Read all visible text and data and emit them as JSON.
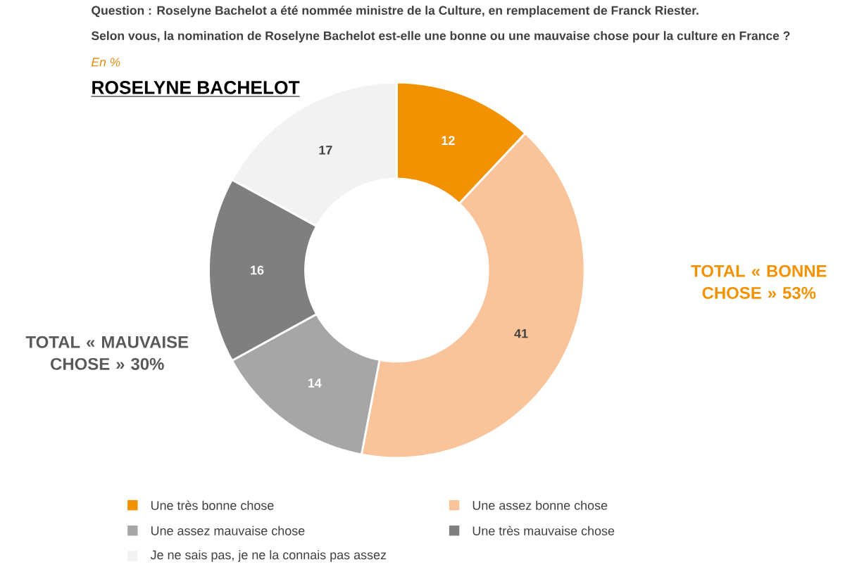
{
  "chart_data": {
    "type": "donut",
    "title": "ROSELYNE BACHELOT",
    "subtitle": "Question : Roselyne Bachelot a été nommée ministre de la Culture, en remplacement de Franck Riester.",
    "annotations": [
      "Selon vous, la nomination de Roselyne Bachelot est-elle une bonne ou une mauvaise chose pour la culture en France ?",
      "En %",
      "TOTAL « BONNE CHOSE » 53%",
      "TOTAL « MAUVAISE CHOSE » 30%"
    ],
    "categories": [
      "Une très bonne chose",
      "Une assez bonne chose",
      "Une assez mauvaise chose",
      "Une très mauvaise chose",
      "Je ne sais pas, je ne la connais pas assez"
    ],
    "values": [
      12,
      41,
      14,
      16,
      17
    ],
    "colors": [
      "#f39200",
      "#f9c49a",
      "#a6a6a6",
      "#7f7f7f",
      "#f2f2f2"
    ],
    "data_labels": true,
    "legend": "bottom"
  }
}
